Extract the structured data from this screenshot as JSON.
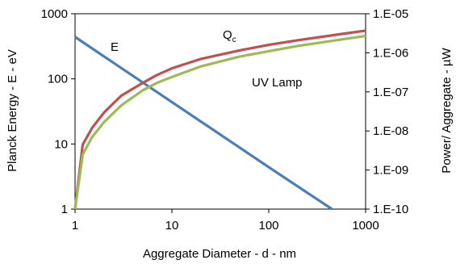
{
  "chart_data": {
    "type": "line",
    "xlabel": "Aggregate Diameter - d - nm",
    "ylabel_left": "Planck Energy - E - eV",
    "ylabel_right": "Power/ Aggregate - µW",
    "x_scale": "log",
    "y_left_scale": "log",
    "y_right_scale": "log",
    "xlim": [
      1,
      1000
    ],
    "ylim_left": [
      1,
      1000
    ],
    "ylim_right": [
      1e-10,
      1e-05
    ],
    "x_ticks": [
      "1",
      "10",
      "100",
      "1000"
    ],
    "y_left_ticks": [
      "1",
      "10",
      "100",
      "1000"
    ],
    "y_right_ticks": [
      "1.E-10",
      "1.E-09",
      "1.E-08",
      "1.E-07",
      "1.E-06",
      "1.E-05"
    ],
    "grid": false,
    "series": [
      {
        "name": "E",
        "axis": "left",
        "color": "#4a7ebb",
        "x": [
          1,
          10,
          100,
          450
        ],
        "y": [
          440,
          44,
          4.4,
          1
        ]
      },
      {
        "name": "Q",
        "name_subscript": "c",
        "axis": "right",
        "color": "#c0504d",
        "x": [
          1,
          1.2,
          1.5,
          2,
          3,
          5,
          7,
          10,
          20,
          50,
          100,
          200,
          500,
          1000
        ],
        "y": [
          1e-10,
          4.5e-09,
          1.2e-08,
          3e-08,
          8e-08,
          1.7e-07,
          2.7e-07,
          4e-07,
          7e-07,
          1.15e-06,
          1.6e-06,
          2.1e-06,
          2.9e-06,
          3.7e-06
        ]
      },
      {
        "name": "UV Lamp",
        "axis": "right",
        "color": "#9bbb59",
        "x": [
          1,
          1.2,
          1.5,
          2,
          3,
          5,
          7,
          10,
          20,
          50,
          100,
          200,
          500,
          1000
        ],
        "y": [
          1e-10,
          2.5e-09,
          7e-09,
          1.7e-08,
          4.5e-08,
          1.1e-07,
          1.7e-07,
          2.4e-07,
          4.5e-07,
          8e-07,
          1.1e-06,
          1.5e-06,
          2.1e-06,
          2.7e-06
        ]
      }
    ]
  }
}
